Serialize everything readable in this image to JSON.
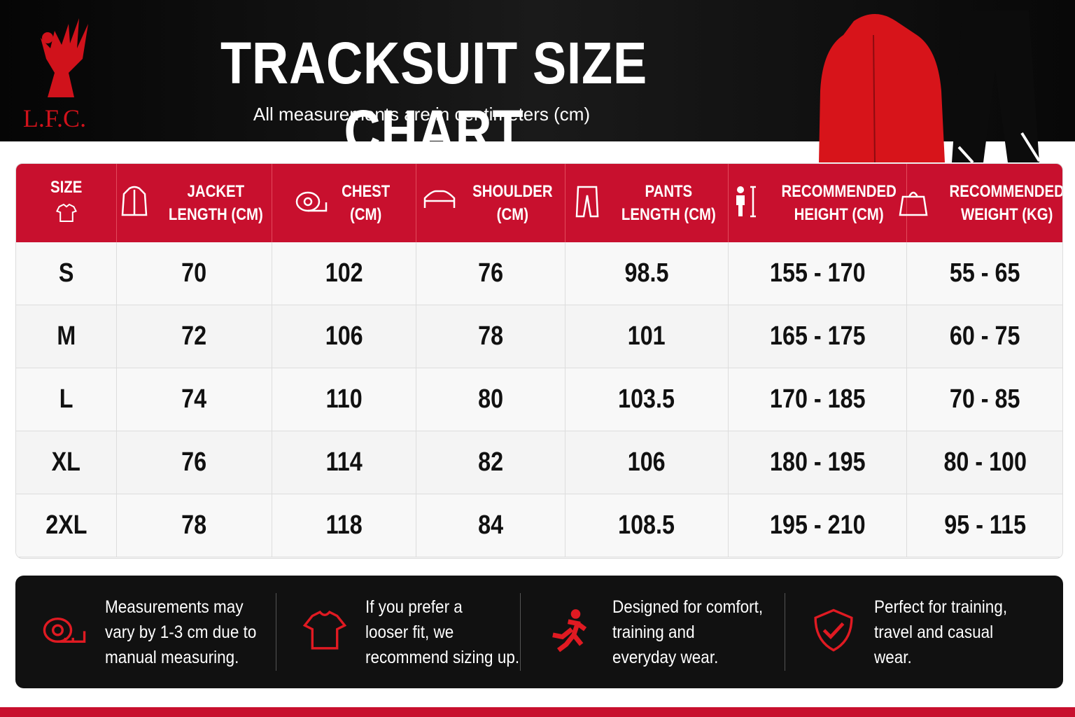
{
  "header": {
    "logo_text": "L.F.C.",
    "title": "TRACKSUIT SIZE CHART",
    "subtitle": "All measurements are in centimeters (cm)"
  },
  "table": {
    "columns": [
      {
        "lines": [
          "SIZE"
        ]
      },
      {
        "lines": [
          "JACKET",
          "LENGTH (CM)"
        ]
      },
      {
        "lines": [
          "CHEST",
          "(CM)"
        ]
      },
      {
        "lines": [
          "SHOULDER",
          "(CM)"
        ]
      },
      {
        "lines": [
          "PANTS",
          "LENGTH (CM)"
        ]
      },
      {
        "lines": [
          "RECOMMENDED",
          "HEIGHT (CM)"
        ]
      },
      {
        "lines": [
          "RECOMMENDED",
          "WEIGHT (KG)"
        ]
      }
    ],
    "rows": [
      [
        "S",
        "70",
        "102",
        "76",
        "98.5",
        "155 - 170",
        "55 - 65"
      ],
      [
        "M",
        "72",
        "106",
        "78",
        "101",
        "165 - 175",
        "60 - 75"
      ],
      [
        "L",
        "74",
        "110",
        "80",
        "103.5",
        "170 - 185",
        "70 - 85"
      ],
      [
        "XL",
        "76",
        "114",
        "82",
        "106",
        "180 - 195",
        "80 - 100"
      ],
      [
        "2XL",
        "78",
        "118",
        "84",
        "108.5",
        "195 - 210",
        "95 - 115"
      ]
    ]
  },
  "notes": [
    {
      "lines": [
        "Measurements may",
        "vary by 1-3 cm due to",
        "manual measuring."
      ]
    },
    {
      "lines": [
        "If you prefer a",
        "looser fit, we",
        "recommend sizing up."
      ]
    },
    {
      "lines": [
        "Designed for comfort,",
        "training and",
        "everyday wear."
      ]
    },
    {
      "lines": [
        "Perfect for training,",
        "travel and casual",
        "wear."
      ]
    }
  ]
}
